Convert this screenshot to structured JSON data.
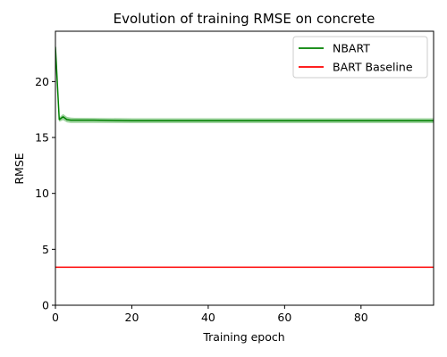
{
  "chart_data": {
    "type": "line",
    "title": "Evolution of training RMSE on concrete",
    "xlabel": "Training epoch",
    "ylabel": "RMSE",
    "xlim": [
      0,
      99
    ],
    "ylim": [
      0,
      24.5
    ],
    "xticks": [
      0,
      20,
      40,
      60,
      80
    ],
    "yticks": [
      0,
      5,
      10,
      15,
      20
    ],
    "grid": false,
    "legend_position": "upper right",
    "series": [
      {
        "name": "NBART",
        "color": "#008000",
        "band_color": "#2ca02c",
        "x": [
          0,
          1,
          2,
          3,
          4,
          5,
          10,
          20,
          30,
          40,
          50,
          60,
          70,
          80,
          90,
          99
        ],
        "y": [
          23.1,
          16.6,
          16.85,
          16.6,
          16.55,
          16.55,
          16.55,
          16.5,
          16.5,
          16.5,
          16.5,
          16.5,
          16.5,
          16.5,
          16.5,
          16.5
        ],
        "band_lower": [
          23.1,
          16.4,
          16.55,
          16.35,
          16.3,
          16.3,
          16.3,
          16.28,
          16.28,
          16.28,
          16.28,
          16.28,
          16.28,
          16.28,
          16.28,
          16.28
        ],
        "band_upper": [
          23.1,
          16.8,
          17.1,
          16.85,
          16.78,
          16.76,
          16.75,
          16.72,
          16.72,
          16.72,
          16.72,
          16.72,
          16.72,
          16.72,
          16.72,
          16.72
        ]
      },
      {
        "name": "BART Baseline",
        "color": "#ff0000",
        "x": [
          0,
          99
        ],
        "y": [
          3.4,
          3.4
        ]
      }
    ]
  }
}
